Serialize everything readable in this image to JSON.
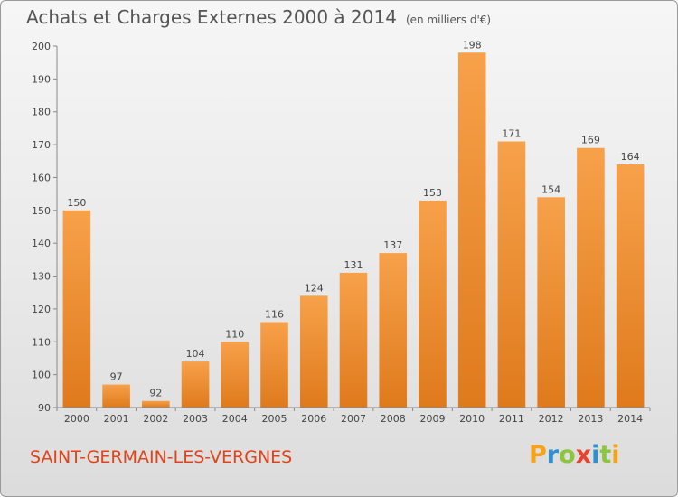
{
  "chart_data": {
    "type": "bar",
    "title": "Achats et Charges Externes 2000 à 2014",
    "subtitle": "(en milliers d'€)",
    "categories": [
      "2000",
      "2001",
      "2002",
      "2003",
      "2004",
      "2005",
      "2006",
      "2007",
      "2008",
      "2009",
      "2010",
      "2011",
      "2012",
      "2013",
      "2014"
    ],
    "values": [
      150,
      97,
      92,
      104,
      110,
      116,
      124,
      131,
      137,
      153,
      198,
      171,
      154,
      169,
      164
    ],
    "ylim": [
      90,
      200
    ],
    "yticks": [
      90,
      100,
      110,
      120,
      130,
      140,
      150,
      160,
      170,
      180,
      190,
      200
    ],
    "grid": false,
    "bar_color": "#f0953a"
  },
  "commune": "SAINT-GERMAIN-LES-VERGNES",
  "logo": {
    "letters": [
      "P",
      "r",
      "o",
      "x",
      "i",
      "t",
      "i"
    ],
    "colors": [
      "#f7a21b",
      "#2f8fd3",
      "#8cc63e",
      "#e8432f",
      "#2f8fd3",
      "#8cc63e",
      "#f7a21b"
    ]
  }
}
